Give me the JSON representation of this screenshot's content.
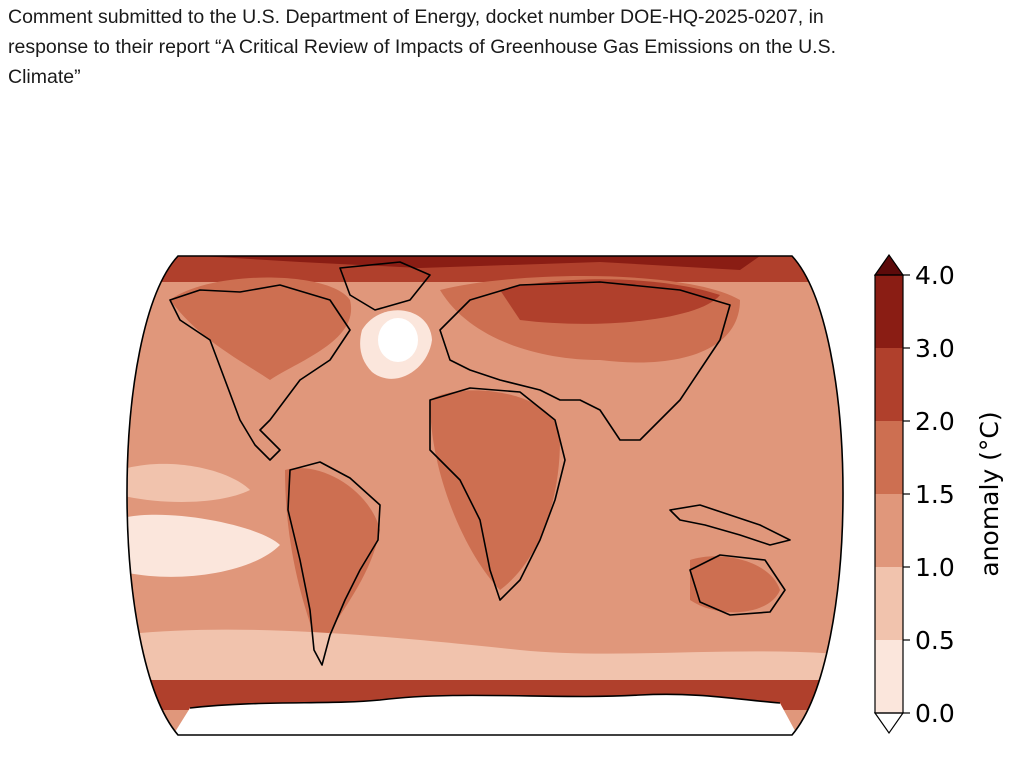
{
  "document": {
    "header_lines": [
      "Comment submitted to the U.S. Department of Energy, docket number DOE-HQ-2025-0207, in",
      "response to their report “A Critical Review of Impacts of Greenhouse Gas Emissions on the U.S.",
      "Climate”"
    ]
  },
  "map": {
    "projection": "Robinson",
    "variable": "temperature anomaly",
    "colorbar": {
      "label": "anomaly (°C)",
      "ticks": [
        "0.0",
        "0.5",
        "1.0",
        "1.5",
        "2.0",
        "3.0",
        "4.0"
      ],
      "bin_edges": [
        0.0,
        0.5,
        1.0,
        1.5,
        2.0,
        3.0,
        4.0
      ],
      "bin_colors": [
        "#fbe6dc",
        "#f1c3ad",
        "#e0977b",
        "#cd6f51",
        "#b0402c",
        "#8a1d14"
      ],
      "extend": "both",
      "under_color": "#ffffff",
      "over_color": "#5c0a0a"
    },
    "background_color": "#e0977b",
    "ocean_base_color": "#e0977b",
    "land_outline_color": "#000000"
  }
}
